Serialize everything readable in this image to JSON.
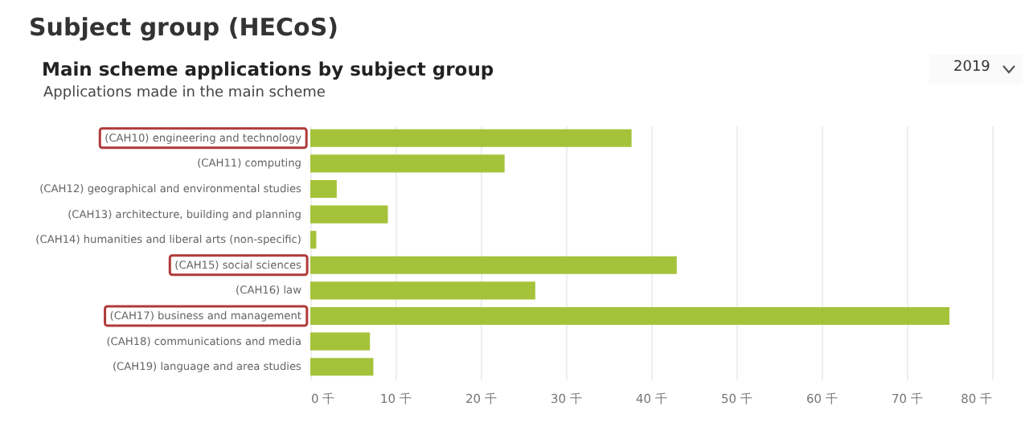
{
  "chart_data": {
    "type": "bar",
    "orientation": "horizontal",
    "title": "Main scheme applications by subject group",
    "subtitle": "Applications made in the main scheme",
    "annotations": [
      "Subject group (HECoS)",
      "2019"
    ],
    "categories": [
      "(CAH10) engineering and technology",
      "(CAH11) computing",
      "(CAH12) geographical and environmental studies",
      "(CAH13) architecture, building and planning",
      "(CAH14) humanities and liberal arts (non-specific)",
      "(CAH15) social sciences",
      "(CAH16) law",
      "(CAH17) business and management",
      "(CAH18) communications and media",
      "(CAH19) language and area studies"
    ],
    "values": [
      37.7,
      22.8,
      3.1,
      9.1,
      0.7,
      43.0,
      26.4,
      75.0,
      7.0,
      7.4
    ],
    "color": "#a5c33a",
    "xlim": [
      0,
      80
    ],
    "xticks": [
      {
        "value": 0,
        "label": "0 千"
      },
      {
        "value": 10,
        "label": "10 千"
      },
      {
        "value": 20,
        "label": "20 千"
      },
      {
        "value": 30,
        "label": "30 千"
      },
      {
        "value": 40,
        "label": "40 千"
      },
      {
        "value": 50,
        "label": "50 千"
      },
      {
        "value": 60,
        "label": "60 千"
      },
      {
        "value": 70,
        "label": "70 千"
      },
      {
        "value": 80,
        "label": "80 千"
      }
    ],
    "grid": "x"
  }
}
